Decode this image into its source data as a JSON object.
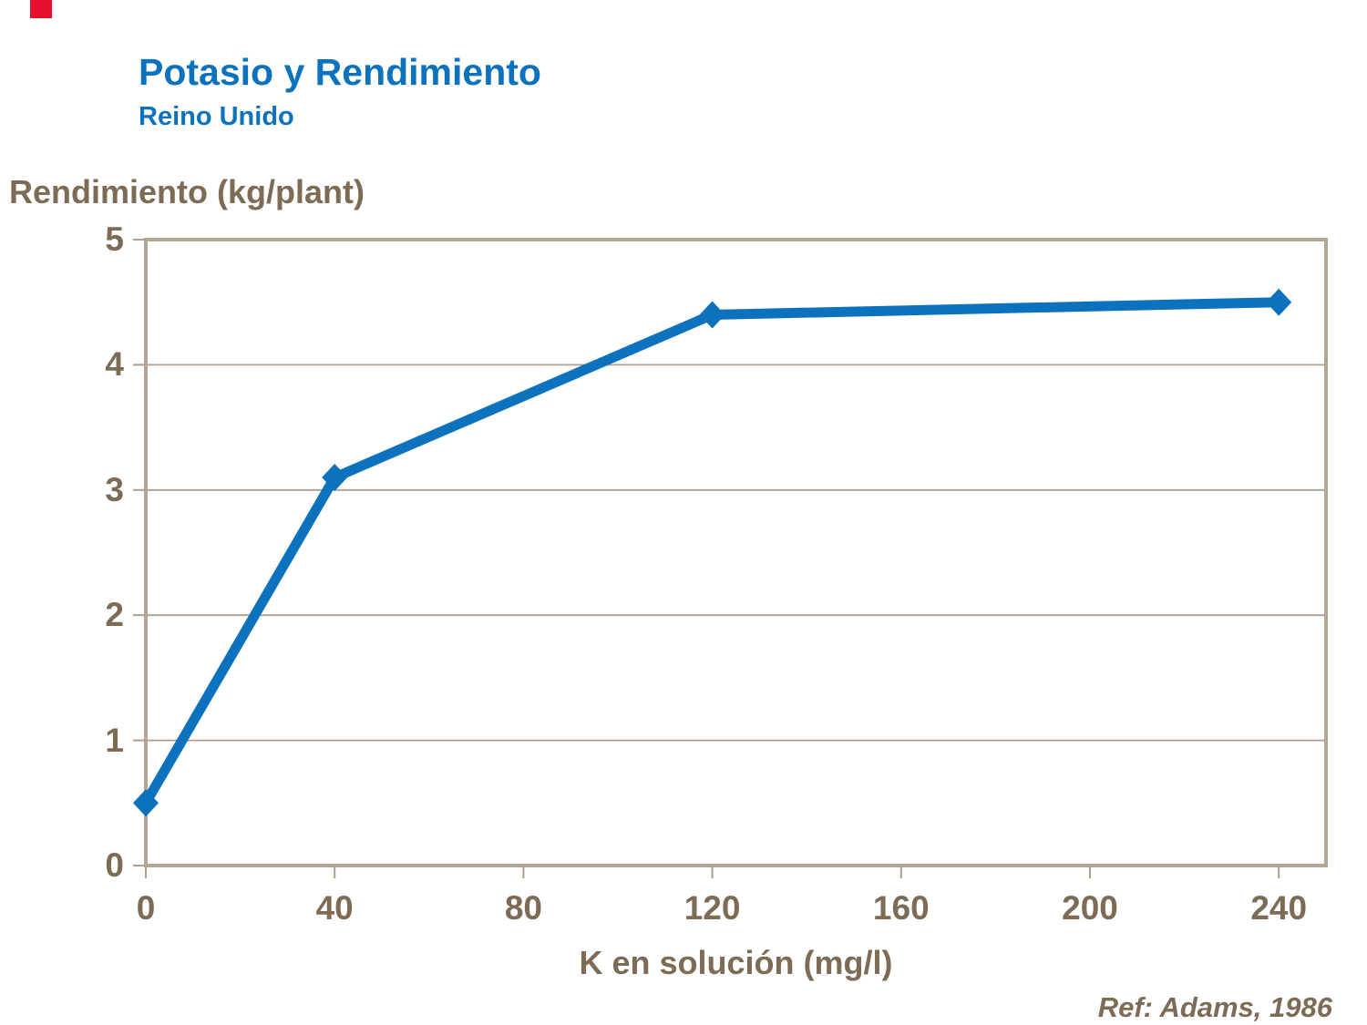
{
  "header": {
    "title": "Potasio y Rendimiento",
    "subtitle": "Reino Unido"
  },
  "footer": {
    "reference": "Ref: Adams, 1986"
  },
  "colors": {
    "accent_blue": "#0D72BD",
    "text_brown": "#7D6C55",
    "axis_tan": "#B3A695",
    "grid_tan": "#AC9F8D",
    "logo_red": "#E8112D",
    "background": "#FFFFFF"
  },
  "chart_data": {
    "type": "line",
    "title": "Potasio y Rendimiento",
    "subtitle": "Reino Unido",
    "xlabel": "K en solución (mg/l)",
    "ylabel": "Rendimiento (kg/plant)",
    "x": [
      0,
      40,
      120,
      240
    ],
    "y": [
      0.5,
      3.1,
      4.4,
      4.5
    ],
    "xlim": [
      0,
      250
    ],
    "ylim": [
      0,
      5
    ],
    "xticks": [
      0,
      40,
      80,
      120,
      160,
      200,
      240
    ],
    "yticks": [
      5,
      4,
      3,
      2,
      1,
      0
    ],
    "grid": "horizontal",
    "legend": "none",
    "marker": "diamond",
    "line_color": "#0D72BD"
  }
}
